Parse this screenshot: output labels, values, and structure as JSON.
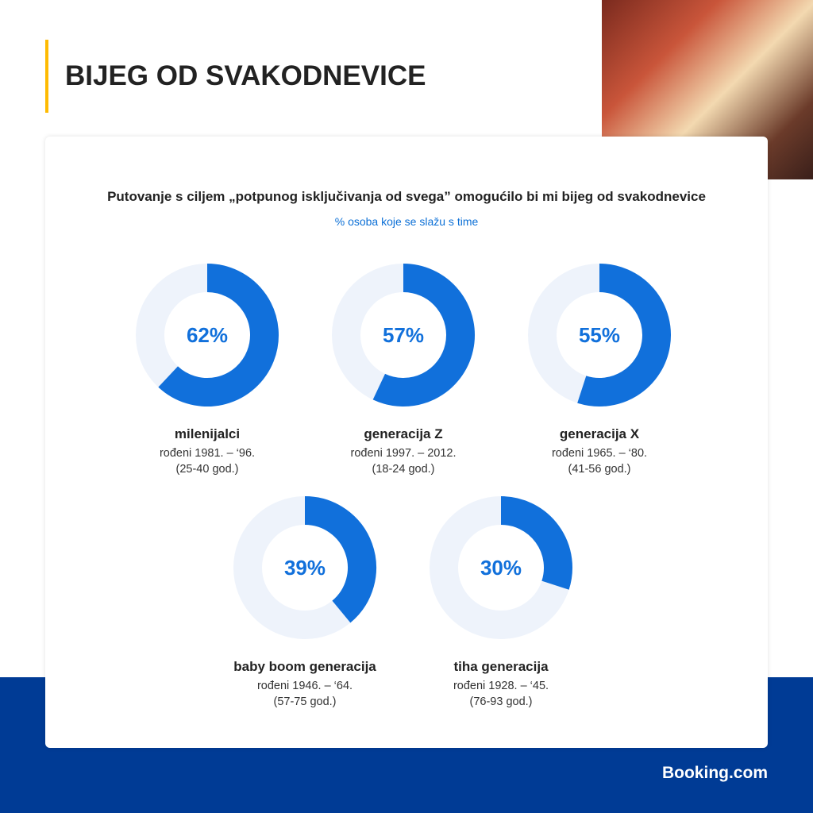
{
  "header": {
    "title": "BIJEG OD SVAKODNEVICE"
  },
  "brand": "Booking.com",
  "colors": {
    "accent": "#febb02",
    "fill": "#1170db",
    "track": "#eef3fb",
    "navy": "#003b95"
  },
  "chart_data": {
    "type": "pie",
    "title": "Putovanje s ciljem „potpunog isključivanja od svega” omogućilo bi mi bijeg od svakodnevice",
    "subtitle": "% osoba koje se slažu s time",
    "series": [
      {
        "name": "milenijalci",
        "born": "rođeni 1981. – ‘96.",
        "age": "(25-40 god.)",
        "value": 62,
        "label": "62%"
      },
      {
        "name": "generacija Z",
        "born": "rođeni 1997. – 2012.",
        "age": "(18-24 god.)",
        "value": 57,
        "label": "57%"
      },
      {
        "name": "generacija X",
        "born": "rođeni 1965. – ‘80.",
        "age": "(41-56 god.)",
        "value": 55,
        "label": "55%"
      },
      {
        "name": "baby boom generacija",
        "born": "rođeni 1946. – ‘64.",
        "age": "(57-75 god.)",
        "value": 39,
        "label": "39%"
      },
      {
        "name": "tiha generacija",
        "born": "rođeni 1928. – ‘45.",
        "age": "(76-93 god.)",
        "value": 30,
        "label": "30%"
      }
    ]
  }
}
